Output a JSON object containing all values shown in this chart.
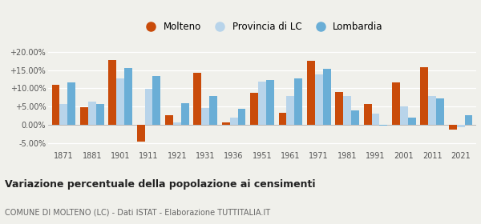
{
  "years": [
    1871,
    1881,
    1901,
    1911,
    1921,
    1931,
    1936,
    1951,
    1961,
    1971,
    1981,
    1991,
    2001,
    2011,
    2021
  ],
  "molteno": [
    11.0,
    4.8,
    17.8,
    -4.7,
    2.6,
    14.3,
    0.6,
    8.7,
    3.3,
    17.6,
    9.0,
    5.7,
    11.6,
    15.8,
    -1.4
  ],
  "provincia_lc": [
    5.8,
    6.3,
    12.7,
    9.8,
    0.7,
    4.6,
    1.9,
    11.8,
    7.9,
    13.9,
    7.8,
    3.1,
    5.0,
    8.0,
    -0.8
  ],
  "lombardia": [
    11.6,
    5.7,
    15.7,
    13.3,
    6.0,
    7.9,
    4.4,
    12.3,
    12.8,
    15.3,
    4.0,
    -0.2,
    2.0,
    7.2,
    2.5
  ],
  "color_molteno": "#c94b0a",
  "color_provincia": "#b8d4ea",
  "color_lombardia": "#6aaed6",
  "title": "Variazione percentuale della popolazione ai censimenti",
  "subtitle": "COMUNE DI MOLTENO (LC) - Dati ISTAT - Elaborazione TUTTITALIA.IT",
  "ylim_min": -7.0,
  "ylim_max": 22.0,
  "yticks": [
    -5.0,
    0.0,
    5.0,
    10.0,
    15.0,
    20.0
  ],
  "ytick_labels": [
    "-5.00%",
    "0.00%",
    "+5.00%",
    "+10.00%",
    "+15.00%",
    "+20.00%"
  ],
  "background_color": "#f0f0eb"
}
